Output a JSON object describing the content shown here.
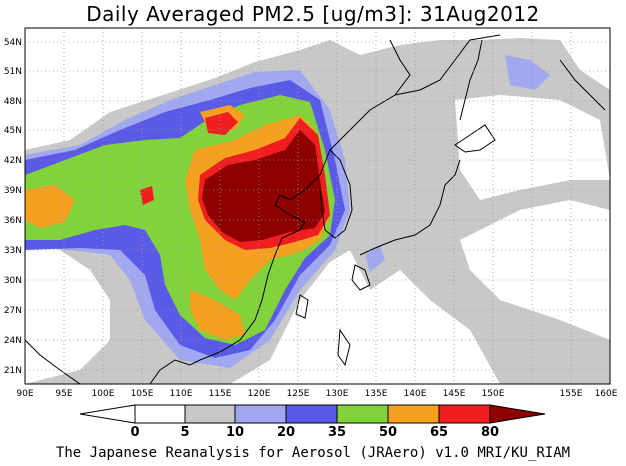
{
  "title": "Daily Averaged PM2.5 [ug/m3]: 31Aug2012",
  "credit": "The Japanese Reanalysis for Aerosol (JRAero) v1.0 MRI/KU_RIAM",
  "lon_labels": [
    "90E",
    "95E",
    "100E",
    "105E",
    "110E",
    "115E",
    "120E",
    "125E",
    "130E",
    "135E",
    "140E",
    "145E",
    "150E",
    "155E",
    "160E"
  ],
  "lat_labels": [
    "54N",
    "51N",
    "48N",
    "45N",
    "42N",
    "39N",
    "36N",
    "33N",
    "30N",
    "27N",
    "24N",
    "21N"
  ],
  "colorbar": {
    "labels": [
      "0",
      "5",
      "10",
      "20",
      "35",
      "50",
      "65",
      "80"
    ],
    "colors": [
      "#ffffff",
      "#c8c8c8",
      "#a0a8f0",
      "#5a5ae6",
      "#82d23c",
      "#f5a01e",
      "#f01e1e",
      "#8c0000"
    ]
  }
}
